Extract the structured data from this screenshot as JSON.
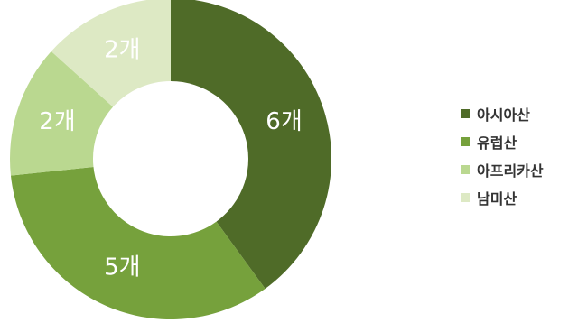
{
  "chart_data": {
    "type": "pie",
    "donut": true,
    "categories": [
      "아시아산",
      "유럽산",
      "아프리카산",
      "남미산"
    ],
    "values": [
      6,
      5,
      2,
      2
    ],
    "data_labels": [
      "6개",
      "5개",
      "2개",
      "2개"
    ],
    "colors": [
      "#4f6b28",
      "#76a13c",
      "#bad890",
      "#dde9c4"
    ],
    "label_color": "#ffffff",
    "start_angle_deg": 0,
    "direction": "clockwise",
    "legend_position": "right",
    "title": ""
  }
}
